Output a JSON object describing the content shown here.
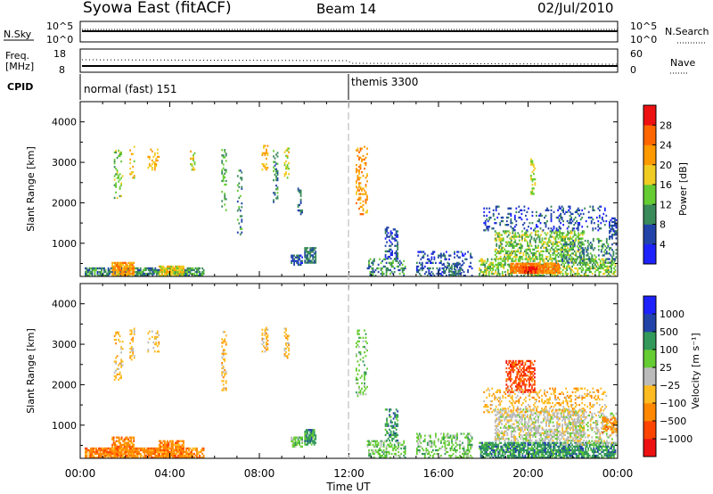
{
  "header": {
    "radar": "Syowa East (fitACF)",
    "beam": "Beam 14",
    "date": "02/Jul/2010"
  },
  "noise_panel": {
    "left_label": "N.Sky",
    "left_ticks": [
      "10^5",
      "10^0"
    ],
    "right_label": "N.Search",
    "right_ticks": [
      "10^5",
      "10^0"
    ]
  },
  "freq_panel": {
    "left_label_1": "Freq.",
    "left_label_2": "[MHz]",
    "left_ticks": [
      "18",
      "8"
    ],
    "right_label": "Nave",
    "right_ticks": [
      "60",
      "0"
    ]
  },
  "cpid_panel": {
    "label": "CPID",
    "segments": [
      {
        "name": "normal (fast) 151",
        "start_hour": 0
      },
      {
        "name": "themis 3300",
        "start_hour": 12
      }
    ]
  },
  "colors": {
    "power": [
      "#1e22ff",
      "#2244a8",
      "#3a8a5a",
      "#66cc33",
      "#f0cc22",
      "#ff9900",
      "#ff6600",
      "#ee1111"
    ],
    "velocity": [
      "#ee1111",
      "#ff4400",
      "#ff8800",
      "#ffbb22",
      "#bbbbbb",
      "#66cc33",
      "#33995a",
      "#2244a8",
      "#1e22ff"
    ],
    "cpid_divider": "#cccccc"
  },
  "chart_data": [
    {
      "type": "heatmap",
      "parameter": "Power",
      "xlabel": "",
      "ylabel": "Slant Range [km]",
      "xlim": [
        0,
        24
      ],
      "ylim": [
        180,
        4500
      ],
      "yticks": [
        1000,
        2000,
        3000,
        4000
      ],
      "colorbar": {
        "label": "Power [dB]",
        "min": 0,
        "max": 32,
        "ticks": [
          4,
          8,
          12,
          16,
          20,
          24,
          28
        ]
      },
      "blocks": [
        {
          "t0": 0.2,
          "t1": 5.5,
          "r0": 180,
          "r1": 380,
          "v": 10,
          "dens": 0.75
        },
        {
          "t0": 1.4,
          "t1": 2.4,
          "r0": 180,
          "r1": 500,
          "v": 22,
          "dens": 0.85
        },
        {
          "t0": 3.5,
          "t1": 4.6,
          "r0": 180,
          "r1": 450,
          "v": 18,
          "dens": 0.8
        },
        {
          "t0": 1.5,
          "t1": 1.9,
          "r0": 2100,
          "r1": 3300,
          "v": 14,
          "dens": 0.25
        },
        {
          "t0": 2.2,
          "t1": 2.4,
          "r0": 2600,
          "r1": 3400,
          "v": 18,
          "dens": 0.3
        },
        {
          "t0": 3.0,
          "t1": 3.5,
          "r0": 2800,
          "r1": 3300,
          "v": 20,
          "dens": 0.3
        },
        {
          "t0": 4.9,
          "t1": 5.1,
          "r0": 2800,
          "r1": 3300,
          "v": 18,
          "dens": 0.35
        },
        {
          "t0": 6.3,
          "t1": 6.5,
          "r0": 1800,
          "r1": 3300,
          "v": 12,
          "dens": 0.35
        },
        {
          "t0": 7.0,
          "t1": 7.2,
          "r0": 1200,
          "r1": 2800,
          "v": 10,
          "dens": 0.3
        },
        {
          "t0": 8.1,
          "t1": 8.4,
          "r0": 2800,
          "r1": 3400,
          "v": 20,
          "dens": 0.4
        },
        {
          "t0": 8.6,
          "t1": 8.8,
          "r0": 2000,
          "r1": 3300,
          "v": 10,
          "dens": 0.3
        },
        {
          "t0": 9.1,
          "t1": 9.3,
          "r0": 2600,
          "r1": 3400,
          "v": 18,
          "dens": 0.35
        },
        {
          "t0": 9.7,
          "t1": 9.9,
          "r0": 1700,
          "r1": 2400,
          "v": 8,
          "dens": 0.35
        },
        {
          "t0": 10.0,
          "t1": 10.5,
          "r0": 500,
          "r1": 900,
          "v": 8,
          "dens": 0.8
        },
        {
          "t0": 9.4,
          "t1": 9.9,
          "r0": 450,
          "r1": 700,
          "v": 6,
          "dens": 0.6
        },
        {
          "t0": 12.3,
          "t1": 12.8,
          "r0": 1700,
          "r1": 3400,
          "v": 22,
          "dens": 0.25
        },
        {
          "t0": 12.8,
          "t1": 14.5,
          "r0": 180,
          "r1": 600,
          "v": 10,
          "dens": 0.35
        },
        {
          "t0": 13.6,
          "t1": 14.2,
          "r0": 600,
          "r1": 1400,
          "v": 6,
          "dens": 0.45
        },
        {
          "t0": 15.0,
          "t1": 17.5,
          "r0": 180,
          "r1": 800,
          "v": 6,
          "dens": 0.3
        },
        {
          "t0": 16.2,
          "t1": 17.0,
          "r0": 200,
          "r1": 500,
          "v": 8,
          "dens": 0.5
        },
        {
          "t0": 17.8,
          "t1": 23.9,
          "r0": 180,
          "r1": 600,
          "v": 14,
          "dens": 0.5
        },
        {
          "t0": 19.2,
          "t1": 21.4,
          "r0": 250,
          "r1": 500,
          "v": 24,
          "dens": 0.85
        },
        {
          "t0": 19.7,
          "t1": 20.4,
          "r0": 250,
          "r1": 420,
          "v": 28,
          "dens": 0.95
        },
        {
          "t0": 18.5,
          "t1": 22.5,
          "r0": 600,
          "r1": 1300,
          "v": 14,
          "dens": 0.45
        },
        {
          "t0": 18.0,
          "t1": 23.5,
          "r0": 1300,
          "r1": 1900,
          "v": 6,
          "dens": 0.2
        },
        {
          "t0": 21.5,
          "t1": 23.9,
          "r0": 500,
          "r1": 1100,
          "v": 10,
          "dens": 0.3
        },
        {
          "t0": 20.1,
          "t1": 20.3,
          "r0": 2200,
          "r1": 3100,
          "v": 16,
          "dens": 0.3
        },
        {
          "t0": 23.6,
          "t1": 23.9,
          "r0": 1100,
          "r1": 1600,
          "v": 6,
          "dens": 0.5
        }
      ]
    },
    {
      "type": "heatmap",
      "parameter": "Velocity",
      "xlabel": "Time UT",
      "ylabel": "Slant Range [km]",
      "xlim": [
        0,
        24
      ],
      "ylim": [
        180,
        4500
      ],
      "xticks": [
        "00:00",
        "04:00",
        "08:00",
        "12:00",
        "16:00",
        "20:00",
        "00:00"
      ],
      "yticks": [
        1000,
        2000,
        3000,
        4000
      ],
      "colorbar": {
        "label": "Velocity [m s⁻¹]",
        "ticks": [
          1000,
          500,
          100,
          25,
          -25,
          -100,
          -500,
          -1000
        ]
      },
      "blocks": [
        {
          "t0": 0.2,
          "t1": 5.5,
          "r0": 180,
          "r1": 450,
          "v": 2,
          "dens": 0.8
        },
        {
          "t0": 1.4,
          "t1": 2.4,
          "r0": 180,
          "r1": 700,
          "v": 2,
          "dens": 0.7
        },
        {
          "t0": 3.5,
          "t1": 4.6,
          "r0": 180,
          "r1": 600,
          "v": 2,
          "dens": 0.75
        },
        {
          "t0": 1.5,
          "t1": 1.9,
          "r0": 2100,
          "r1": 3300,
          "v": 3,
          "dens": 0.25
        },
        {
          "t0": 2.2,
          "t1": 2.4,
          "r0": 2600,
          "r1": 3400,
          "v": 3,
          "dens": 0.3
        },
        {
          "t0": 3.0,
          "t1": 3.5,
          "r0": 2800,
          "r1": 3300,
          "v": 3,
          "dens": 0.3
        },
        {
          "t0": 6.3,
          "t1": 6.5,
          "r0": 1800,
          "r1": 3300,
          "v": 3,
          "dens": 0.35
        },
        {
          "t0": 8.1,
          "t1": 8.4,
          "r0": 2800,
          "r1": 3400,
          "v": 3,
          "dens": 0.4
        },
        {
          "t0": 9.1,
          "t1": 9.3,
          "r0": 2600,
          "r1": 3400,
          "v": 3,
          "dens": 0.35
        },
        {
          "t0": 10.0,
          "t1": 10.5,
          "r0": 500,
          "r1": 900,
          "v": 6,
          "dens": 0.85
        },
        {
          "t0": 9.4,
          "t1": 9.9,
          "r0": 450,
          "r1": 700,
          "v": 5,
          "dens": 0.6
        },
        {
          "t0": 12.3,
          "t1": 12.8,
          "r0": 1700,
          "r1": 3400,
          "v": 5,
          "dens": 0.25
        },
        {
          "t0": 12.8,
          "t1": 14.5,
          "r0": 180,
          "r1": 600,
          "v": 5,
          "dens": 0.4
        },
        {
          "t0": 13.6,
          "t1": 14.2,
          "r0": 600,
          "r1": 1400,
          "v": 6,
          "dens": 0.45
        },
        {
          "t0": 15.0,
          "t1": 17.5,
          "r0": 180,
          "r1": 800,
          "v": 5,
          "dens": 0.35
        },
        {
          "t0": 17.8,
          "t1": 23.9,
          "r0": 180,
          "r1": 550,
          "v": 6,
          "dens": 0.75
        },
        {
          "t0": 19.0,
          "t1": 20.3,
          "r0": 1800,
          "r1": 2600,
          "v": 1,
          "dens": 0.55
        },
        {
          "t0": 18.5,
          "t1": 22.5,
          "r0": 600,
          "r1": 1400,
          "v": 4,
          "dens": 0.5
        },
        {
          "t0": 18.0,
          "t1": 23.5,
          "r0": 1300,
          "r1": 1900,
          "v": 3,
          "dens": 0.25
        },
        {
          "t0": 21.5,
          "t1": 23.9,
          "r0": 500,
          "r1": 1300,
          "v": 4,
          "dens": 0.35
        },
        {
          "t0": 23.3,
          "t1": 23.9,
          "r0": 800,
          "r1": 1200,
          "v": 2,
          "dens": 0.6
        }
      ]
    }
  ]
}
